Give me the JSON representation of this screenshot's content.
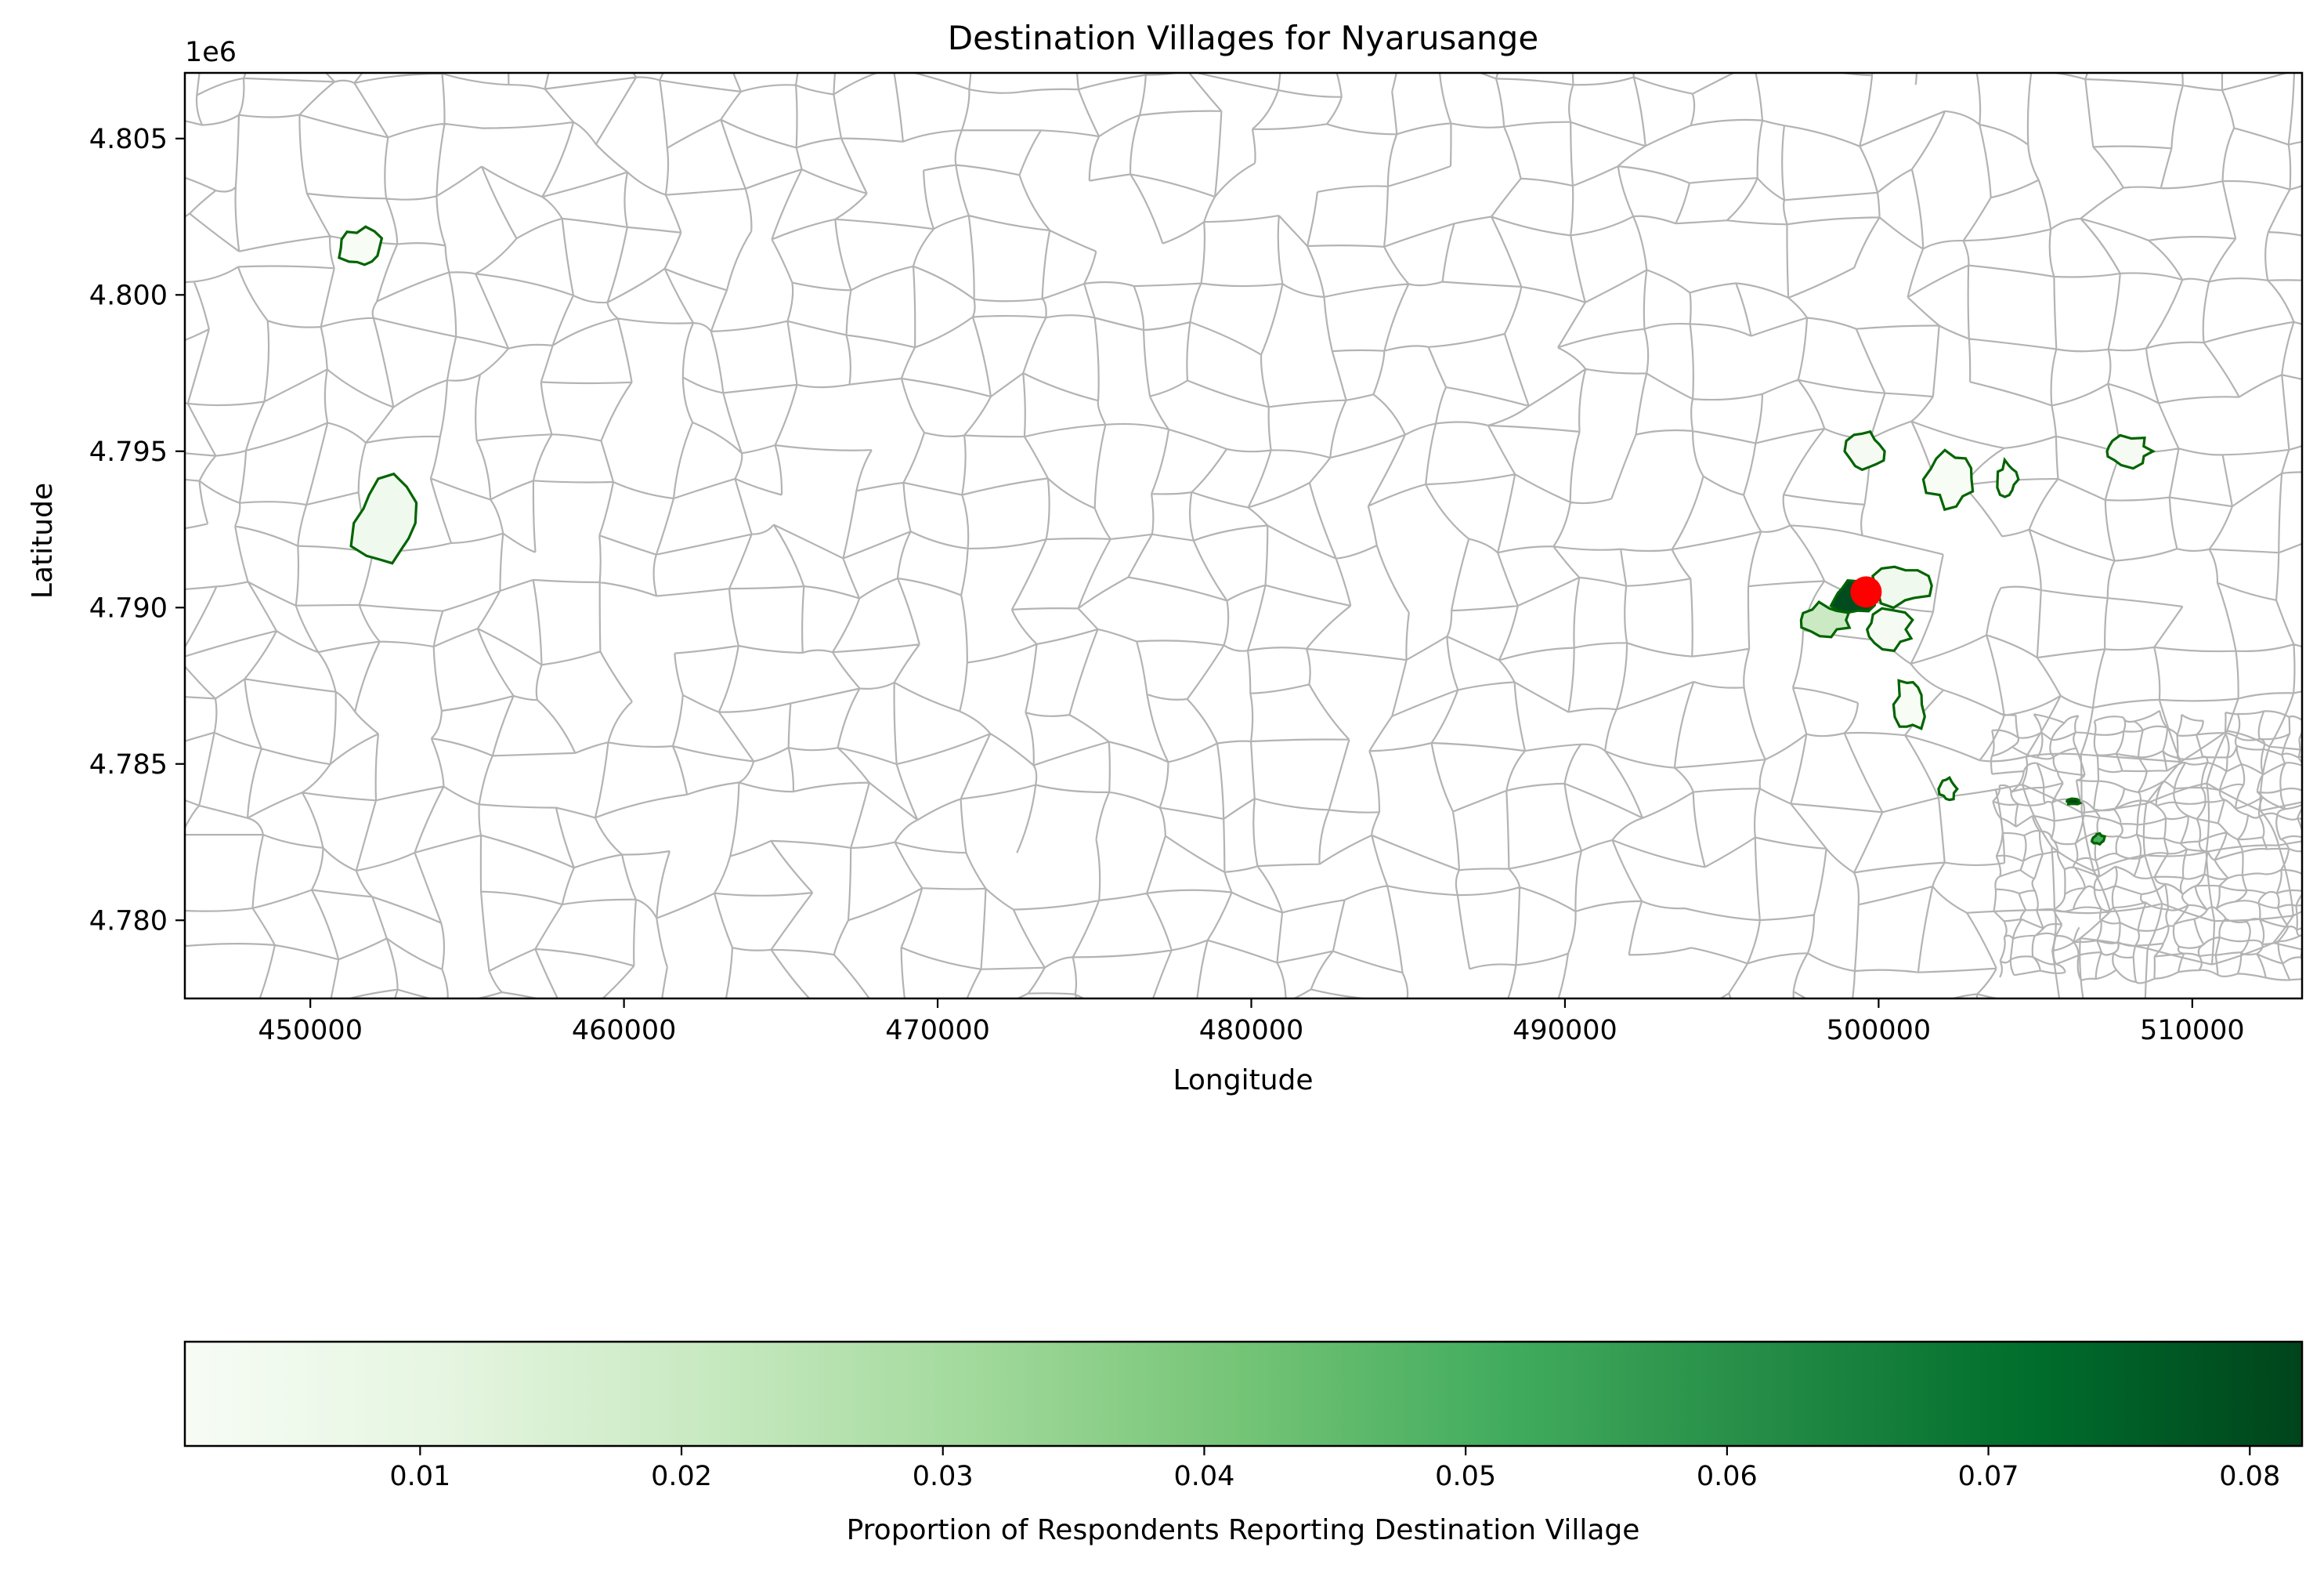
{
  "title": "Destination Villages for Nyarusange",
  "xlabel": "Longitude",
  "ylabel": "Latitude",
  "y_offset_label": "1e6",
  "colorbar_label": "Proportion of Respondents Reporting Destination Village",
  "colors": {
    "boundary": "#b3b3b3",
    "village_edge": "#006400",
    "origin_marker": "#ff0000",
    "colormap": [
      "#f7fcf5",
      "#e5f5e0",
      "#c7e9c0",
      "#a1d99b",
      "#74c476",
      "#41ab5d",
      "#238b45",
      "#006d2c",
      "#00441b"
    ]
  },
  "chart_data": {
    "type": "map",
    "xlim": [
      446000,
      513500
    ],
    "ylim": [
      4777500,
      4807100
    ],
    "x_ticks": [
      450000,
      460000,
      470000,
      480000,
      490000,
      500000,
      510000
    ],
    "x_tick_labels": [
      "450000",
      "460000",
      "470000",
      "480000",
      "490000",
      "500000",
      "510000"
    ],
    "y_ticks": [
      4780000,
      4785000,
      4790000,
      4795000,
      4800000,
      4805000
    ],
    "y_tick_labels": [
      "4.780",
      "4.785",
      "4.790",
      "4.795",
      "4.800",
      "4.805"
    ],
    "colorbar": {
      "cmap": "Greens",
      "range": [
        0.001,
        0.082
      ],
      "ticks": [
        0.01,
        0.02,
        0.03,
        0.04,
        0.05,
        0.06,
        0.07,
        0.08
      ],
      "tick_labels": [
        "0.01",
        "0.02",
        "0.03",
        "0.04",
        "0.05",
        "0.06",
        "0.07",
        "0.08"
      ]
    },
    "origin": {
      "name": "Nyarusange",
      "x": 499600,
      "y": 4790500
    },
    "destination_villages": [
      {
        "cx": 451600,
        "cy": 4801500,
        "rx": 650,
        "ry": 620,
        "value": 0.001
      },
      {
        "cx": 452400,
        "cy": 4792700,
        "rx": 1050,
        "ry": 1450,
        "value": 0.005
      },
      {
        "cx": 499200,
        "cy": 4790300,
        "rx": 750,
        "ry": 520,
        "value": 0.08
      },
      {
        "cx": 498300,
        "cy": 4789600,
        "rx": 800,
        "ry": 520,
        "value": 0.02
      },
      {
        "cx": 500700,
        "cy": 4790700,
        "rx": 900,
        "ry": 650,
        "value": 0.005
      },
      {
        "cx": 500300,
        "cy": 4789300,
        "rx": 750,
        "ry": 600,
        "value": 0.002
      },
      {
        "cx": 499600,
        "cy": 4795000,
        "rx": 600,
        "ry": 650,
        "value": 0.002
      },
      {
        "cx": 502300,
        "cy": 4794100,
        "rx": 750,
        "ry": 850,
        "value": 0.001
      },
      {
        "cx": 504100,
        "cy": 4794100,
        "rx": 320,
        "ry": 550,
        "value": 0.001
      },
      {
        "cx": 507900,
        "cy": 4795000,
        "rx": 850,
        "ry": 500,
        "value": 0.002
      },
      {
        "cx": 501000,
        "cy": 4786900,
        "rx": 500,
        "ry": 850,
        "value": 0.001
      },
      {
        "cx": 502200,
        "cy": 4784200,
        "rx": 280,
        "ry": 380,
        "value": 0.001
      },
      {
        "cx": 506200,
        "cy": 4783800,
        "rx": 220,
        "ry": 100,
        "value": 0.082
      },
      {
        "cx": 507000,
        "cy": 4782600,
        "rx": 200,
        "ry": 160,
        "value": 0.05
      }
    ]
  }
}
